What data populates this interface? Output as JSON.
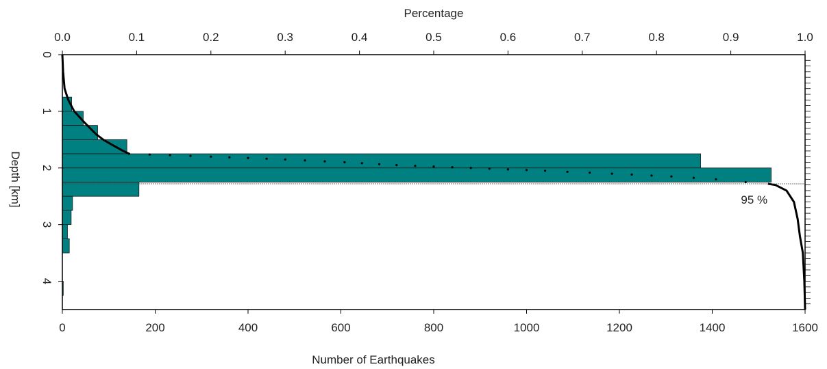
{
  "chart_data": {
    "type": "bar",
    "orientation": "horizontal",
    "xlabel_bottom": "Number of Earthquakes",
    "xlabel_top": "Percentage",
    "ylabel": "Depth [km]",
    "xlim_bottom": [
      0,
      1600
    ],
    "xlim_top": [
      0.0,
      1.0
    ],
    "ylim": [
      0,
      4.5
    ],
    "y_inverted": true,
    "bottom_ticks": [
      "0",
      "200",
      "400",
      "600",
      "800",
      "1000",
      "1200",
      "1400",
      "1600"
    ],
    "bottom_tick_values": [
      0,
      200,
      400,
      600,
      800,
      1000,
      1200,
      1400,
      1600
    ],
    "top_ticks": [
      "0.0",
      "0.1",
      "0.2",
      "0.3",
      "0.4",
      "0.5",
      "0.6",
      "0.7",
      "0.8",
      "0.9",
      "1.0"
    ],
    "top_tick_values": [
      0.0,
      0.1,
      0.2,
      0.3,
      0.4,
      0.5,
      0.6,
      0.7,
      0.8,
      0.9,
      1.0
    ],
    "y_ticks": [
      "0",
      "1",
      "2",
      "3",
      "4"
    ],
    "y_tick_values": [
      0,
      1,
      2,
      3,
      4
    ],
    "bar_color": "#008080",
    "bin_width_km": 0.25,
    "bins": [
      {
        "depth_from": 0.75,
        "depth_to": 1.0,
        "count": 20
      },
      {
        "depth_from": 1.0,
        "depth_to": 1.25,
        "count": 45
      },
      {
        "depth_from": 1.25,
        "depth_to": 1.5,
        "count": 76
      },
      {
        "depth_from": 1.5,
        "depth_to": 1.75,
        "count": 139
      },
      {
        "depth_from": 1.75,
        "depth_to": 2.0,
        "count": 1375
      },
      {
        "depth_from": 2.0,
        "depth_to": 2.25,
        "count": 1527
      },
      {
        "depth_from": 2.25,
        "depth_to": 2.5,
        "count": 165
      },
      {
        "depth_from": 2.5,
        "depth_to": 2.75,
        "count": 22
      },
      {
        "depth_from": 2.75,
        "depth_to": 3.0,
        "count": 19
      },
      {
        "depth_from": 3.0,
        "depth_to": 3.25,
        "count": 11
      },
      {
        "depth_from": 3.25,
        "depth_to": 3.5,
        "count": 15
      },
      {
        "depth_from": 4.0,
        "depth_to": 4.25,
        "count": 2
      }
    ],
    "cumulative_series": {
      "axis": "Percentage",
      "points": [
        {
          "depth": 0.0,
          "pct": 0.0
        },
        {
          "depth": 0.3,
          "pct": 0.001
        },
        {
          "depth": 0.6,
          "pct": 0.003
        },
        {
          "depth": 0.8,
          "pct": 0.008
        },
        {
          "depth": 1.0,
          "pct": 0.016
        },
        {
          "depth": 1.2,
          "pct": 0.03
        },
        {
          "depth": 1.4,
          "pct": 0.045
        },
        {
          "depth": 1.5,
          "pct": 0.055
        },
        {
          "depth": 1.6,
          "pct": 0.068
        },
        {
          "depth": 1.7,
          "pct": 0.082
        },
        {
          "depth": 1.75,
          "pct": 0.09
        },
        {
          "depth": 1.8,
          "pct": 0.2
        },
        {
          "depth": 1.85,
          "pct": 0.3
        },
        {
          "depth": 1.9,
          "pct": 0.38
        },
        {
          "depth": 1.95,
          "pct": 0.45
        },
        {
          "depth": 2.0,
          "pct": 0.55
        },
        {
          "depth": 2.05,
          "pct": 0.65
        },
        {
          "depth": 2.1,
          "pct": 0.74
        },
        {
          "depth": 2.15,
          "pct": 0.82
        },
        {
          "depth": 2.2,
          "pct": 0.88
        },
        {
          "depth": 2.25,
          "pct": 0.92
        },
        {
          "depth": 2.28,
          "pct": 0.95
        },
        {
          "depth": 2.3,
          "pct": 0.96
        },
        {
          "depth": 2.4,
          "pct": 0.975
        },
        {
          "depth": 2.6,
          "pct": 0.985
        },
        {
          "depth": 2.9,
          "pct": 0.99
        },
        {
          "depth": 3.2,
          "pct": 0.993
        },
        {
          "depth": 3.5,
          "pct": 0.997
        },
        {
          "depth": 4.0,
          "pct": 0.999
        },
        {
          "depth": 4.5,
          "pct": 1.0
        }
      ]
    },
    "threshold": {
      "label": "95 %",
      "depth": 2.28,
      "pct": 0.95
    }
  }
}
